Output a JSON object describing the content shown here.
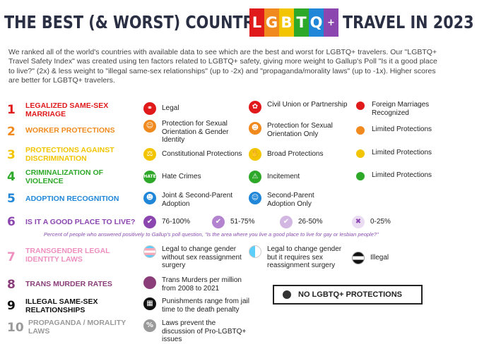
{
  "header": {
    "title_left": "THE BEST (& WORST) COUNTRIES FOR",
    "flag_letters": [
      "L",
      "G",
      "B",
      "T",
      "Q"
    ],
    "flag_plus": "+",
    "title_right": "TRAVEL IN 2023"
  },
  "intro": "We ranked all of the world's countries with available data to see which are the best and worst for LGBTQ+ travelers. Our \"LGBTQ+ Travel Safety Index\" was created using ten factors related to LGBTQ+ safety, giving more weight to Gallup's Poll \"Is it a good place to live?\" (2x) & less weight to \"illegal same-sex relationships\" (up to -2x) and \"propaganda/morality laws\" (up to -1x). Higher scores are better for LGBTQ+ travelers.",
  "colors": {
    "red": "#e0191b",
    "orange": "#f08a1e",
    "yellow": "#f2c500",
    "green": "#2ea829",
    "blue": "#1f86d8",
    "purple": "#8b46b0",
    "pink": "#ee8fbf",
    "mauve": "#8a3d78",
    "black": "#111111",
    "gray": "#9a9a9a"
  },
  "factors": [
    {
      "num": "1",
      "label": "LEGALIZED SAME-SEX MARRIAGE",
      "items": [
        "Legal",
        "Civil Union or Partnership",
        "Foreign Marriages Recognized"
      ]
    },
    {
      "num": "2",
      "label": "WORKER PROTECTIONS",
      "items": [
        "Protection for Sexual Orientation & Gender Identity",
        "Protection for Sexual Orientation Only",
        "Limited Protections"
      ]
    },
    {
      "num": "3",
      "label": "PROTECTIONS AGAINST DISCRIMINATION",
      "items": [
        "Constitutional Protections",
        "Broad Protections",
        "Limited Protections"
      ]
    },
    {
      "num": "4",
      "label": "CRIMINALIZATION OF VIOLENCE",
      "items": [
        "Hate Crimes",
        "Incitement",
        "Limited Protections"
      ]
    },
    {
      "num": "5",
      "label": "ADOPTION RECOGNITION",
      "items": [
        "Joint & Second-Parent Adoption",
        "Second-Parent Adoption Only"
      ]
    },
    {
      "num": "6",
      "label": "IS IT A GOOD PLACE TO LIVE?",
      "items": [
        "76-100%",
        "51-75%",
        "26-50%",
        "0-25%"
      ],
      "note": "Percent of people who answered positively to Gallup's poll question, \"Is the area where you live a good place to live for gay or lesbian people?\""
    },
    {
      "num": "7",
      "label": "TRANSGENDER LEGAL IDENTITY LAWS",
      "items": [
        "Legal to change gender without sex reassignment surgery",
        "Legal to change gender but it requires sex reassignment surgery",
        "Illegal"
      ]
    },
    {
      "num": "8",
      "label": "TRANS MURDER RATES",
      "items": [
        "Trans Murders per million from 2008 to 2021"
      ]
    },
    {
      "num": "9",
      "label": "ILLEGAL SAME-SEX RELATIONSHIPS",
      "items": [
        "Punishments range from jail time to the death penalty"
      ]
    },
    {
      "num": "10",
      "label": "PROPAGANDA / MORALITY LAWS",
      "items": [
        "Laws prevent the discussion of Pro-LGBTQ+ issues"
      ]
    }
  ],
  "no_protections": "NO LGBTQ+ PROTECTIONS",
  "icons": [
    "rings-icon",
    "people-icon",
    "scales-icon",
    "hate-crime-icon",
    "family-icon",
    "thumb-icon",
    "trans-flag-icon",
    "gavel-icon"
  ]
}
